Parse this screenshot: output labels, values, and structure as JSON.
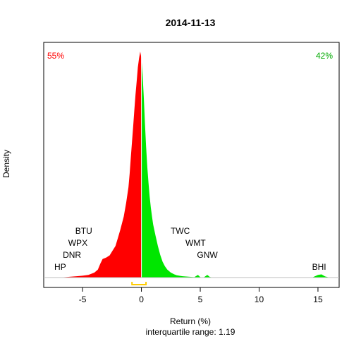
{
  "chart_data": {
    "type": "area",
    "title": "2014-11-13",
    "xlabel": "Return (%)",
    "ylabel": "Density",
    "subtitle": "interquartile range: 1.19",
    "xlim": [
      -8.3,
      16.8
    ],
    "ylim": [
      0,
      1.0
    ],
    "x_ticks": [
      -5,
      0,
      5,
      10,
      15
    ],
    "x_tick_labels": [
      "-5",
      "0",
      "5",
      "10",
      "15"
    ],
    "grid": false,
    "split_at": 0,
    "negative_share": "55%",
    "positive_share": "42%",
    "colors": {
      "negative": "#ff0000",
      "positive": "#00e600",
      "iqr_bracket": "#ffcc00",
      "baseline": "#bebebe"
    },
    "density": {
      "x": [
        -7.2,
        -6.5,
        -6.0,
        -5.5,
        -5.0,
        -4.5,
        -4.0,
        -3.7,
        -3.5,
        -3.3,
        -3.0,
        -2.7,
        -2.5,
        -2.2,
        -2.0,
        -1.8,
        -1.5,
        -1.3,
        -1.1,
        -1.0,
        -0.9,
        -0.8,
        -0.7,
        -0.6,
        -0.5,
        -0.4,
        -0.3,
        -0.2,
        -0.1,
        0.0,
        0.1,
        0.2,
        0.3,
        0.4,
        0.5,
        0.6,
        0.7,
        0.8,
        0.9,
        1.0,
        1.2,
        1.4,
        1.6,
        1.8,
        2.0,
        2.2,
        2.5,
        2.8,
        3.0,
        3.5,
        4.0,
        4.5,
        4.8,
        5.0,
        5.3,
        5.6,
        5.8,
        6.0,
        6.3,
        7.0,
        8.0,
        10.0,
        12.0,
        14.5,
        15.0,
        15.3,
        15.6,
        16.0
      ],
      "y": [
        0.0,
        0.002,
        0.004,
        0.006,
        0.008,
        0.012,
        0.022,
        0.035,
        0.06,
        0.082,
        0.088,
        0.098,
        0.115,
        0.14,
        0.175,
        0.21,
        0.27,
        0.33,
        0.4,
        0.46,
        0.53,
        0.6,
        0.67,
        0.74,
        0.81,
        0.87,
        0.93,
        0.97,
        1.0,
        0.97,
        0.9,
        0.8,
        0.68,
        0.58,
        0.49,
        0.42,
        0.36,
        0.31,
        0.27,
        0.235,
        0.185,
        0.14,
        0.1,
        0.07,
        0.05,
        0.035,
        0.022,
        0.014,
        0.01,
        0.006,
        0.004,
        0.002,
        0.012,
        0.002,
        0.001,
        0.012,
        0.003,
        0.001,
        0.0,
        0.0,
        0.0,
        0.0,
        0.0,
        0.0,
        0.012,
        0.014,
        0.005,
        0.0
      ]
    },
    "iqr": [
      -0.8,
      0.39
    ],
    "annotations": [
      {
        "text": "HP",
        "x": -6.9,
        "level": 0
      },
      {
        "text": "DNR",
        "x": -5.9,
        "level": 1
      },
      {
        "text": "WPX",
        "x": -5.4,
        "level": 2
      },
      {
        "text": "BTU",
        "x": -4.9,
        "level": 3
      },
      {
        "text": "TWC",
        "x": 3.3,
        "level": 3
      },
      {
        "text": "WMT",
        "x": 4.6,
        "level": 2
      },
      {
        "text": "GNW",
        "x": 5.6,
        "level": 1
      },
      {
        "text": "BHI",
        "x": 15.1,
        "level": 0
      }
    ]
  }
}
